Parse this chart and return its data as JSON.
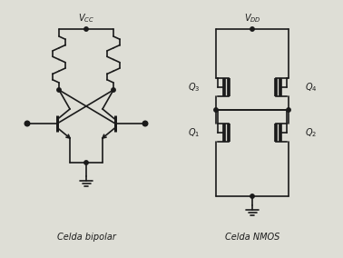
{
  "bg_color": "#deded6",
  "line_color": "#1a1a1a",
  "text_color": "#1a1a1a",
  "label_bipolar": "Celda bipolar",
  "label_nmos": "Celda NMOS",
  "lw": 1.2,
  "font_size": 7.0
}
